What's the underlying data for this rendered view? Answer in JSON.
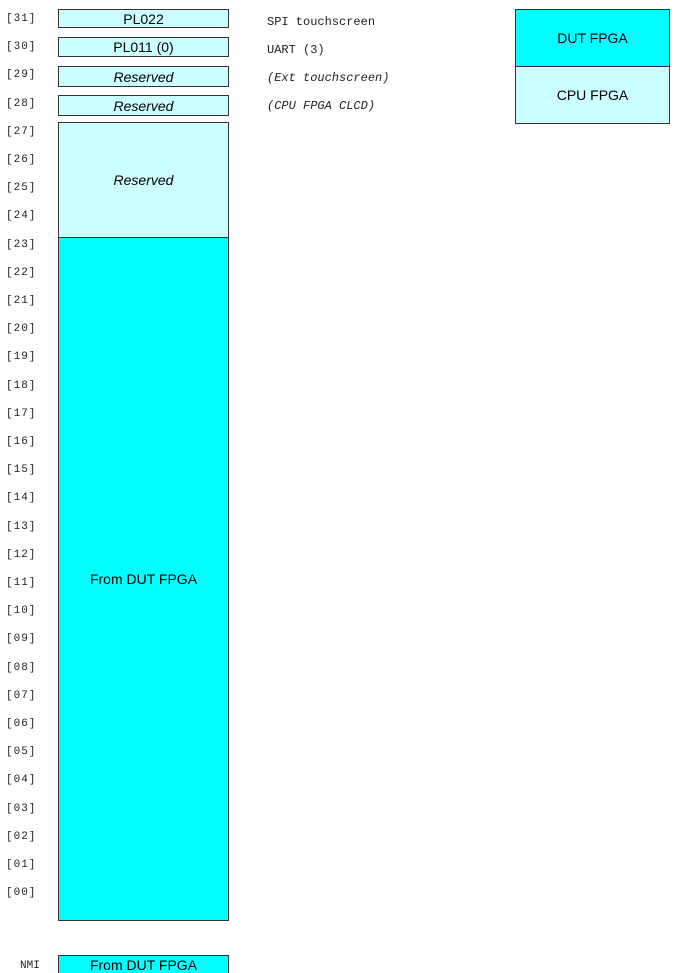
{
  "bit_labels": [
    "[31]",
    "[30]",
    "[29]",
    "[28]",
    "[27]",
    "[26]",
    "[25]",
    "[24]",
    "[23]",
    "[22]",
    "[21]",
    "[20]",
    "[19]",
    "[18]",
    "[17]",
    "[16]",
    "[15]",
    "[14]",
    "[13]",
    "[12]",
    "[11]",
    "[10]",
    "[09]",
    "[08]",
    "[07]",
    "[06]",
    "[05]",
    "[04]",
    "[03]",
    "[02]",
    "[01]",
    "[00]"
  ],
  "cells": {
    "bit31": "PL022",
    "bit30": "PL011 (0)",
    "bit29": "Reserved",
    "bit28": "Reserved",
    "bits27_24": "Reserved",
    "bits23_0": "From DUT FPGA"
  },
  "descriptions": {
    "bit31": "SPI touchscreen",
    "bit30": "UART (3)",
    "bit29": "(Ext touchscreen)",
    "bit28": "(CPU FPGA CLCD)"
  },
  "legend": {
    "dut": "DUT FPGA",
    "cpu": "CPU FPGA"
  },
  "nmi": {
    "label": "NMI",
    "value": "From DUT FPGA"
  },
  "colors": {
    "dut_fpga": "#00ffff",
    "cpu_fpga": "#ccffff"
  }
}
